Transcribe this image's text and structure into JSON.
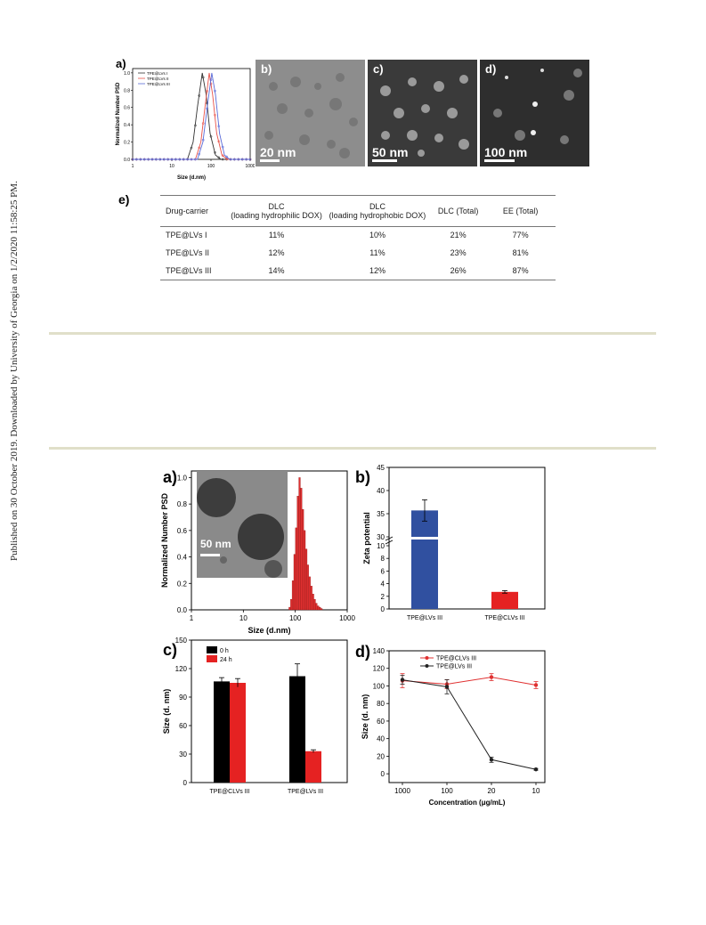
{
  "side_note": "Published on 30 October 2019. Downloaded by University of Georgia on 1/2/2020 11:58:25 PM.",
  "fig_top": {
    "panel_a": {
      "letter": "a)",
      "ylabel": "Normalized Number PSD",
      "xlabel": "Size (d.nm)",
      "yticks": [
        "0.0",
        "0.2",
        "0.4",
        "0.6",
        "0.8",
        "1.0"
      ],
      "xticks": [
        "1",
        "10",
        "100",
        "1000"
      ],
      "legend": [
        "TPE@LVs I",
        "TPE@LVs II",
        "TPE@LVs III"
      ],
      "colors": [
        "#333333",
        "#e8524a",
        "#5a6bd8"
      ]
    },
    "panel_b": {
      "letter": "b)",
      "scale": "20 nm"
    },
    "panel_c": {
      "letter": "c)",
      "scale": "50 nm"
    },
    "panel_d": {
      "letter": "d)",
      "scale": "100 nm"
    },
    "table": {
      "letter": "e)",
      "headers": [
        "Drug-carrier",
        "DLC\n(loading hydrophilic DOX)",
        "DLC\n(loading hydrophobic DOX)",
        "DLC (Total)",
        "EE (Total)"
      ],
      "rows": [
        [
          "TPE@LVs I",
          "11%",
          "10%",
          "21%",
          "77%"
        ],
        [
          "TPE@LVs II",
          "12%",
          "11%",
          "23%",
          "81%"
        ],
        [
          "TPE@LVs III",
          "14%",
          "12%",
          "26%",
          "87%"
        ]
      ]
    }
  },
  "fig_bottom": {
    "panel_a": {
      "letter": "a)",
      "scale": "50 nm"
    },
    "panel_b": {
      "letter": "b)"
    },
    "panel_c": {
      "letter": "c)"
    },
    "panel_d": {
      "letter": "d)"
    }
  },
  "chart_data": [
    {
      "type": "line",
      "xlabel": "Size (d.nm)",
      "ylabel": "Normalized Number PSD",
      "xscale": "log",
      "xlim": [
        1,
        1000
      ],
      "ylim": [
        0,
        1.05
      ],
      "series": [
        {
          "name": "TPE@LVs I",
          "color": "#333333",
          "peak_x": 60,
          "values": [
            {
              "x": 25,
              "y": 0.0
            },
            {
              "x": 35,
              "y": 0.2
            },
            {
              "x": 45,
              "y": 0.6
            },
            {
              "x": 60,
              "y": 1.0
            },
            {
              "x": 75,
              "y": 0.75
            },
            {
              "x": 95,
              "y": 0.3
            },
            {
              "x": 130,
              "y": 0.05
            },
            {
              "x": 180,
              "y": 0.0
            }
          ]
        },
        {
          "name": "TPE@LVs II",
          "color": "#e8524a",
          "peak_x": 90,
          "values": [
            {
              "x": 40,
              "y": 0.0
            },
            {
              "x": 55,
              "y": 0.2
            },
            {
              "x": 70,
              "y": 0.6
            },
            {
              "x": 90,
              "y": 1.0
            },
            {
              "x": 110,
              "y": 0.75
            },
            {
              "x": 140,
              "y": 0.3
            },
            {
              "x": 190,
              "y": 0.05
            },
            {
              "x": 260,
              "y": 0.0
            }
          ]
        },
        {
          "name": "TPE@LVs III",
          "color": "#5a6bd8",
          "peak_x": 105,
          "values": [
            {
              "x": 45,
              "y": 0.0
            },
            {
              "x": 62,
              "y": 0.2
            },
            {
              "x": 80,
              "y": 0.6
            },
            {
              "x": 105,
              "y": 1.0
            },
            {
              "x": 130,
              "y": 0.75
            },
            {
              "x": 165,
              "y": 0.3
            },
            {
              "x": 220,
              "y": 0.05
            },
            {
              "x": 300,
              "y": 0.0
            }
          ]
        }
      ]
    },
    {
      "type": "bar",
      "xlabel": "Size (d.nm)",
      "ylabel": "Normalized Number PSD",
      "xscale": "log",
      "xlim": [
        1,
        1000
      ],
      "ylim": [
        0,
        1.05
      ],
      "xticks": [
        "1",
        "10",
        "100",
        "1000"
      ],
      "yticks": [
        "0.0",
        "0.2",
        "0.4",
        "0.6",
        "0.8",
        "1.0"
      ],
      "bins": [
        {
          "x": 78,
          "y": 0.02
        },
        {
          "x": 84,
          "y": 0.08
        },
        {
          "x": 90,
          "y": 0.22
        },
        {
          "x": 97,
          "y": 0.42
        },
        {
          "x": 104,
          "y": 0.62
        },
        {
          "x": 112,
          "y": 0.86
        },
        {
          "x": 121,
          "y": 1.0
        },
        {
          "x": 130,
          "y": 0.92
        },
        {
          "x": 140,
          "y": 0.76
        },
        {
          "x": 151,
          "y": 0.6
        },
        {
          "x": 163,
          "y": 0.46
        },
        {
          "x": 175,
          "y": 0.34
        },
        {
          "x": 189,
          "y": 0.25
        },
        {
          "x": 204,
          "y": 0.18
        },
        {
          "x": 220,
          "y": 0.12
        },
        {
          "x": 237,
          "y": 0.08
        },
        {
          "x": 255,
          "y": 0.05
        },
        {
          "x": 275,
          "y": 0.03
        },
        {
          "x": 297,
          "y": 0.02
        },
        {
          "x": 320,
          "y": 0.01
        }
      ],
      "color": "#e03030"
    },
    {
      "type": "bar",
      "ylabel": "Zeta potential",
      "categories": [
        "TPE@LVs III",
        "TPE@CLVs III"
      ],
      "values": [
        35.7,
        2.7
      ],
      "errors": [
        2.3,
        0.2
      ],
      "colors": [
        "#3050a0",
        "#e52222"
      ],
      "yticks_lower": [
        "0",
        "2",
        "4",
        "6",
        "8",
        "10"
      ],
      "yticks_upper": [
        "30",
        "35",
        "40",
        "45"
      ],
      "broken_axis": true
    },
    {
      "type": "bar",
      "ylabel": "Size (d. nm)",
      "categories": [
        "TPE@CLVs III",
        "TPE@LVs III"
      ],
      "series": [
        {
          "name": "0 h",
          "color": "#000000",
          "values": [
            106.5,
            112
          ],
          "errors": [
            4,
            13
          ]
        },
        {
          "name": "24 h",
          "color": "#e52222",
          "values": [
            105,
            33
          ],
          "errors": [
            4.5,
            1.5
          ]
        }
      ],
      "ylim": [
        0,
        150
      ],
      "yticks": [
        "0",
        "30",
        "60",
        "90",
        "120",
        "150"
      ]
    },
    {
      "type": "line",
      "xlabel": "Concentration (μg/mL)",
      "ylabel": "Size (d. nm)",
      "categories": [
        "1000",
        "100",
        "20",
        "10"
      ],
      "ylim": [
        0,
        140
      ],
      "yticks": [
        "0",
        "20",
        "40",
        "60",
        "80",
        "100",
        "120",
        "140"
      ],
      "series": [
        {
          "name": "TPE@CLVs III",
          "color": "#e03030",
          "values": [
            106,
            102,
            110,
            101
          ],
          "errors": [
            8,
            5,
            4,
            4
          ]
        },
        {
          "name": "TPE@LVs III",
          "color": "#222222",
          "values": [
            107,
            99,
            16,
            5
          ],
          "errors": [
            5,
            8,
            3,
            1
          ]
        }
      ]
    }
  ]
}
